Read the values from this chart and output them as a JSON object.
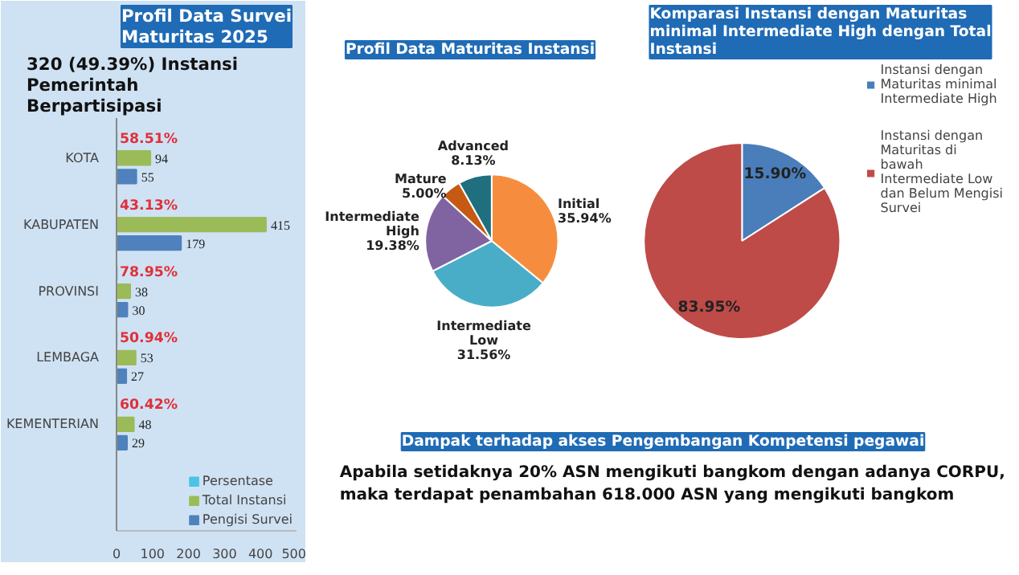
{
  "chart_data": [
    {
      "type": "bar",
      "orientation": "horizontal",
      "title": "Profil Data Survei Maturitas 2025",
      "subtitle": "320 (49.39%) Instansi Pemerintah Berpartisipasi",
      "categories": [
        "KOTA",
        "KABUPATEN",
        "PROVINSI",
        "LEMBAGA",
        "KEMENTERIAN"
      ],
      "series": [
        {
          "name": "Persentase",
          "color": "#4bc3e6",
          "values": [
            0.5851,
            0.4313,
            0.7895,
            0.5094,
            0.6042
          ],
          "value_labels": [
            "58.51%",
            "43.13%",
            "78.95%",
            "50.94%",
            "60.42%"
          ]
        },
        {
          "name": "Total Instansi",
          "color": "#9bbb59",
          "values": [
            94,
            415,
            38,
            53,
            48
          ]
        },
        {
          "name": "Pengisi Survei",
          "color": "#4f81bd",
          "values": [
            55,
            179,
            30,
            27,
            29
          ]
        }
      ],
      "xlim": [
        0,
        500
      ],
      "xticks": [
        0,
        100,
        200,
        300,
        400,
        500
      ],
      "grid": false,
      "legend": "bottom",
      "data_labels": true
    },
    {
      "type": "pie",
      "title": "Profil Data Maturitas Instansi",
      "categories": [
        "Initial",
        "Intermediate Low",
        "Intermediate High",
        "Mature",
        "Advanced"
      ],
      "values": [
        35.94,
        31.56,
        19.38,
        5.0,
        8.13
      ],
      "colors": [
        "#f68d3e",
        "#4aadc7",
        "#8064a2",
        "#c65a14",
        "#1f6f7f"
      ],
      "value_labels": [
        "35.94%",
        "31.56%",
        "19.38%",
        "5.00%",
        "8.13%"
      ],
      "legend": false
    },
    {
      "type": "pie",
      "title": "Komparasi Instansi dengan Maturitas minimal Intermediate High dengan Total Instansi",
      "categories": [
        "Instansi dengan Maturitas minimal Intermediate High",
        "Instansi dengan Maturitas di bawah Intermediate Low dan Belum Mengisi Survei"
      ],
      "values": [
        15.9,
        83.95
      ],
      "colors": [
        "#4a7ebb",
        "#be4b48"
      ],
      "value_labels": [
        "15.90%",
        "83.95%"
      ],
      "legend": "right"
    },
    {
      "type": "other",
      "title": "Dampak terhadap akses Pengembangan Kompetensi pegawai",
      "annotations": [
        "Apabila setidaknya 20% ASN mengikuti bangkom dengan adanya CORPU, maka terdapat penambahan 618.000 ASN yang mengikuti bangkom"
      ]
    }
  ]
}
